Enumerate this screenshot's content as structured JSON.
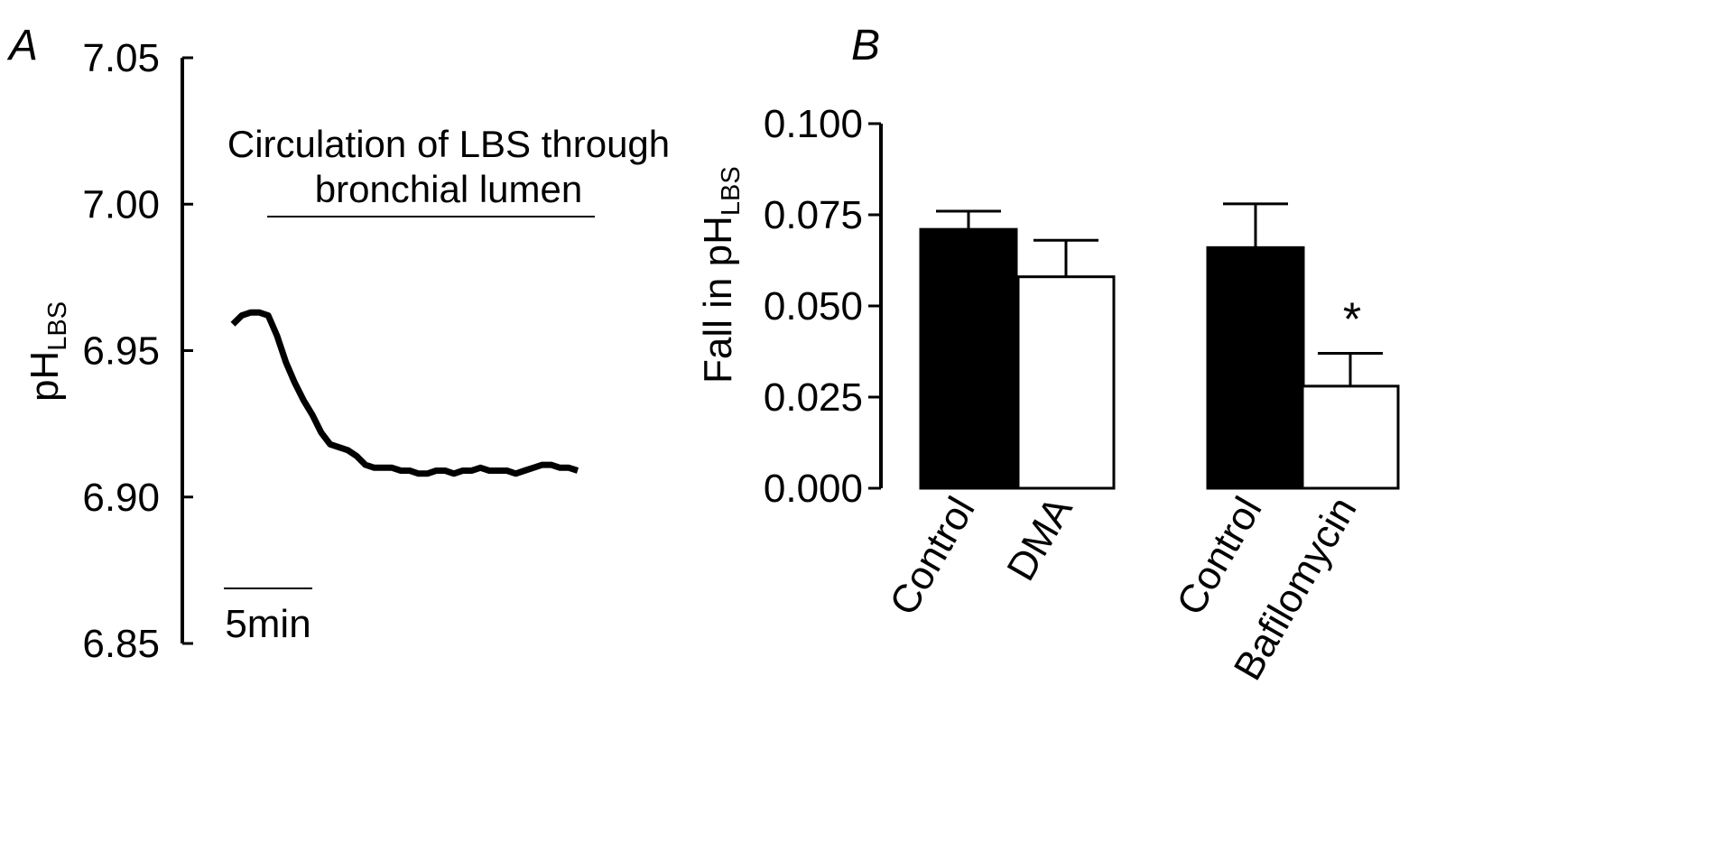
{
  "chart_data": [
    {
      "panel": "A",
      "type": "line",
      "ylabel": "pH",
      "ylabel_subscript": "LBS",
      "ylim": [
        6.85,
        7.05
      ],
      "yticks": [
        "7.05",
        "7.00",
        "6.95",
        "6.90",
        "6.85"
      ],
      "annotation": [
        "Circulation of LBS through",
        "bronchial lumen"
      ],
      "scale_bar": "5min",
      "series": [
        {
          "t_min": [
            0.0,
            0.5,
            1.0,
            1.5,
            2.0,
            2.5,
            3.0,
            3.5,
            4.0,
            4.5,
            5.0,
            5.5,
            6.0,
            6.5,
            7.0,
            7.5,
            8.0,
            8.5,
            9.0,
            9.5,
            10.0,
            10.5,
            11.0,
            11.5,
            12.0,
            12.5,
            13.0,
            13.5,
            14.0,
            14.5,
            15.0,
            15.5,
            16.0,
            16.5,
            17.0,
            17.5,
            18.0,
            18.5,
            19.0,
            19.5
          ],
          "values": [
            6.959,
            6.962,
            6.963,
            6.963,
            6.962,
            6.955,
            6.946,
            6.939,
            6.933,
            6.928,
            6.922,
            6.918,
            6.917,
            6.916,
            6.914,
            6.911,
            6.91,
            6.91,
            6.91,
            6.909,
            6.909,
            6.908,
            6.908,
            6.909,
            6.909,
            6.908,
            6.909,
            6.909,
            6.91,
            6.909,
            6.909,
            6.909,
            6.908,
            6.909,
            6.91,
            6.911,
            6.911,
            6.91,
            6.91,
            6.909
          ]
        }
      ]
    },
    {
      "panel": "B",
      "type": "bar",
      "ylabel": "Fall in pH",
      "ylabel_subscript": "LBS",
      "ylim": [
        0.0,
        0.1
      ],
      "yticks": [
        "0.100",
        "0.075",
        "0.050",
        "0.025",
        "0.000"
      ],
      "categories": [
        "Control",
        "DMA",
        "Control",
        "Bafilomycin"
      ],
      "values": [
        0.071,
        0.058,
        0.066,
        0.028
      ],
      "errors": [
        0.005,
        0.01,
        0.012,
        0.009
      ],
      "fills": [
        "#000000",
        "#ffffff",
        "#000000",
        "#ffffff"
      ],
      "significance": [
        "",
        "",
        "",
        "*"
      ]
    }
  ]
}
